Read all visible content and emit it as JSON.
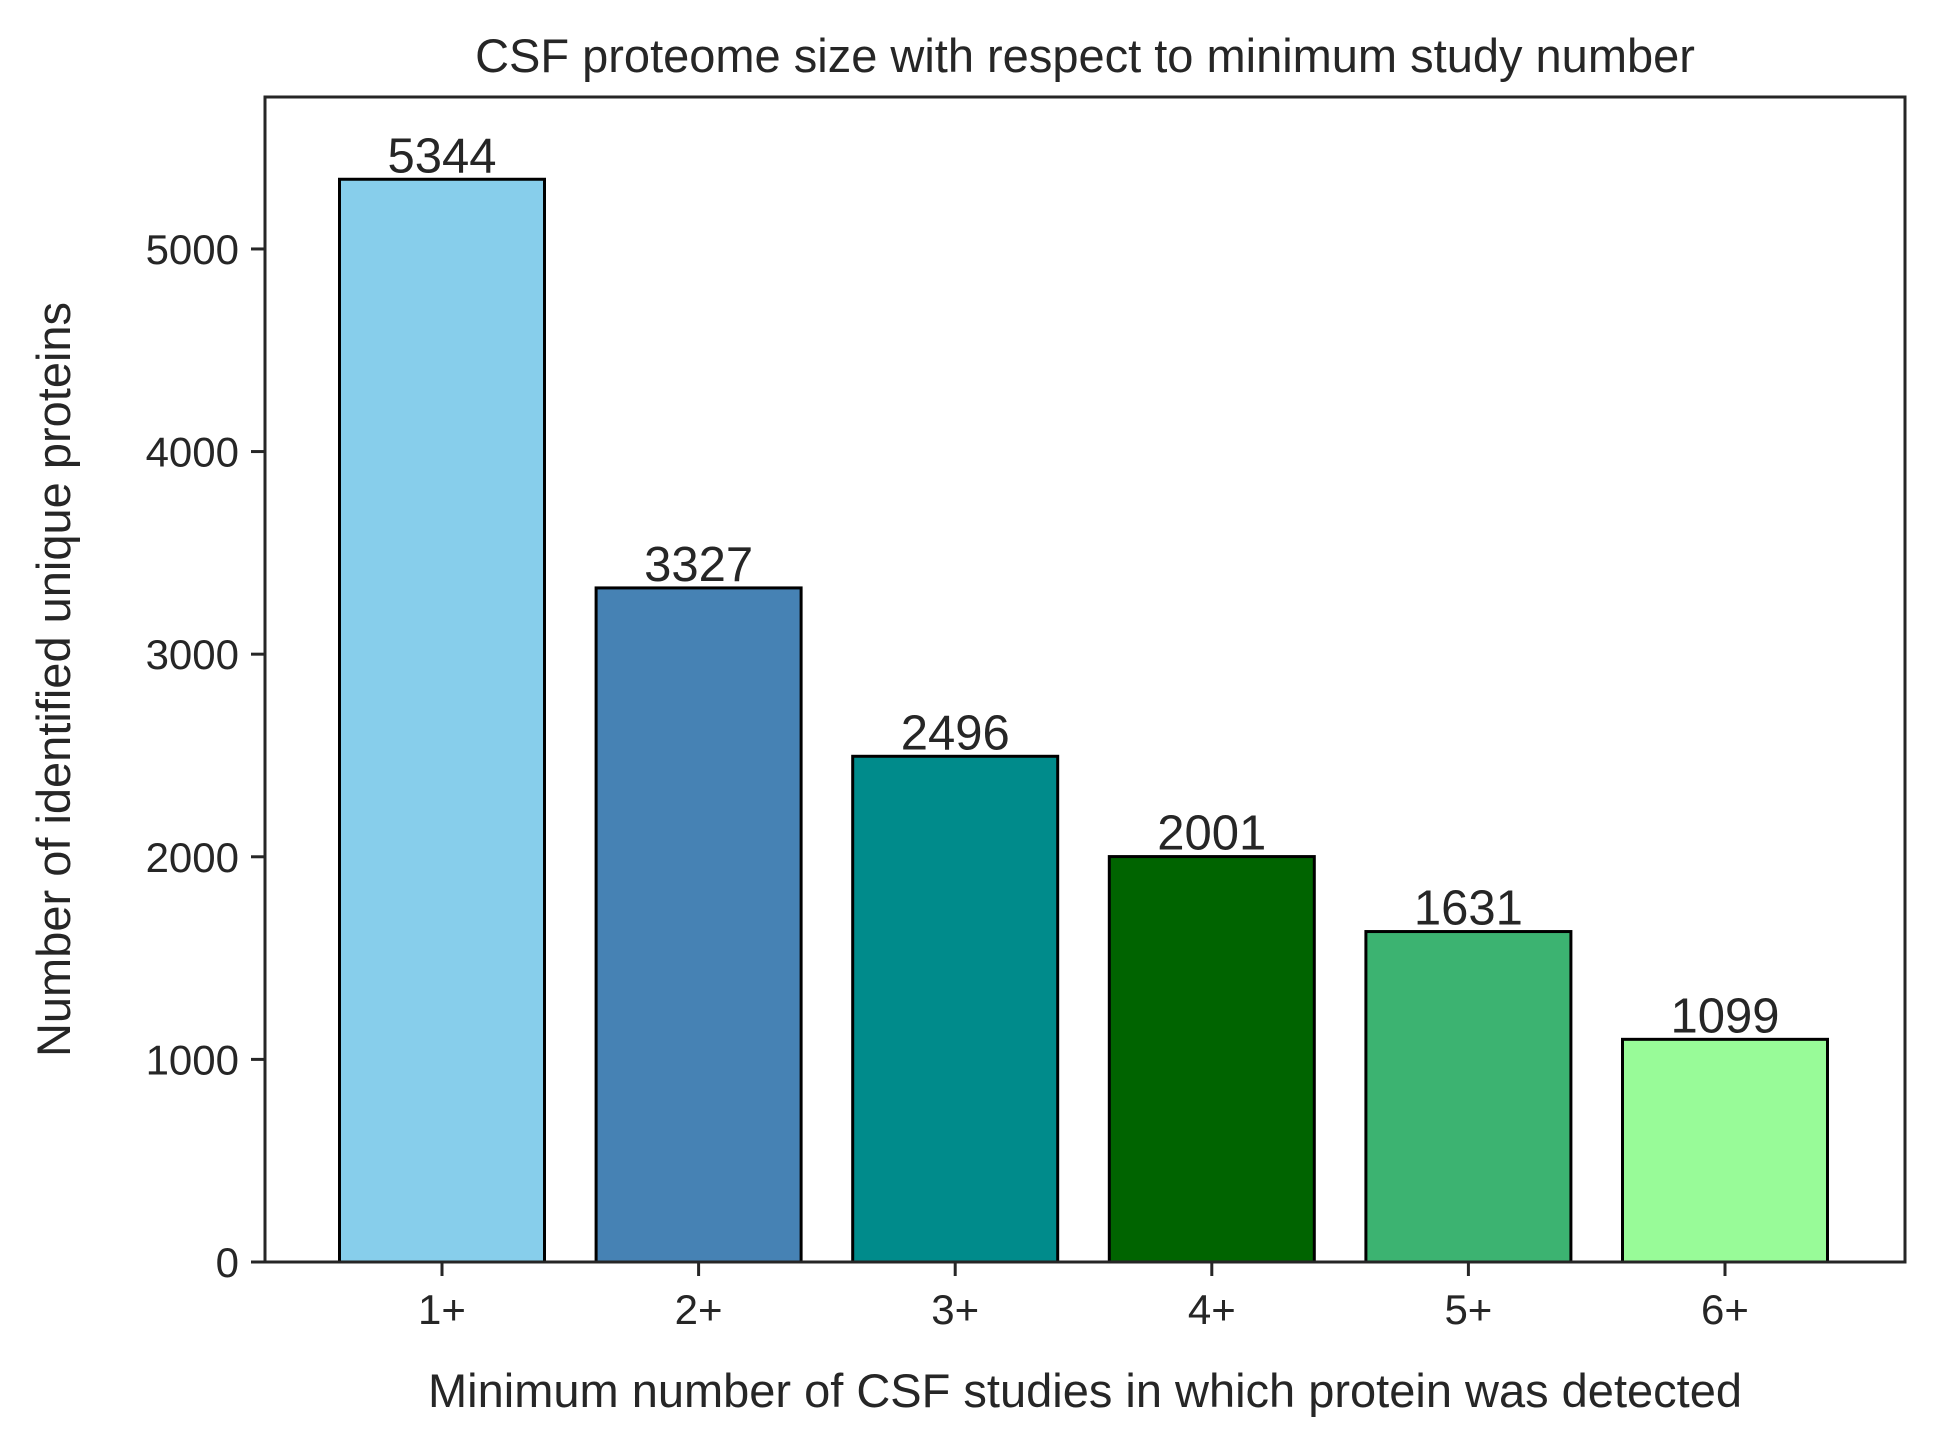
{
  "chart_data": {
    "type": "bar",
    "title": "CSF proteome size with respect to minimum study number",
    "xlabel": "Minimum number of CSF studies in which protein was detected",
    "ylabel": "Number of identified unique proteins",
    "categories": [
      "1+",
      "2+",
      "3+",
      "4+",
      "5+",
      "6+"
    ],
    "values": [
      5344,
      3327,
      2496,
      2001,
      1631,
      1099
    ],
    "data_labels": [
      "5344",
      "3327",
      "2496",
      "2001",
      "1631",
      "1099"
    ],
    "colors": [
      "#87ceeb",
      "#4682b4",
      "#008b8b",
      "#006400",
      "#3cb371",
      "#98fb98"
    ],
    "ylim": [
      0,
      5750
    ],
    "yticks": [
      0,
      1000,
      2000,
      3000,
      4000,
      5000
    ],
    "ytick_labels": [
      "0",
      "1000",
      "2000",
      "3000",
      "4000",
      "5000"
    ],
    "grid": false,
    "legend": "none"
  }
}
